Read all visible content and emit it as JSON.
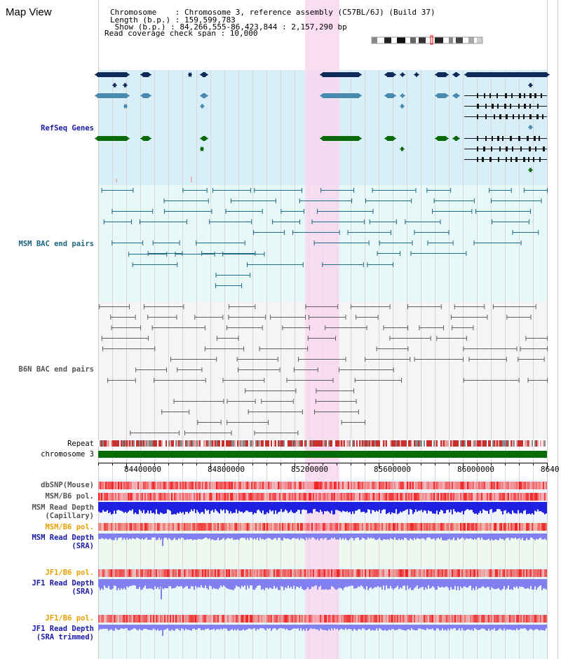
{
  "header": {
    "title": "Map View"
  },
  "info": {
    "chromosome": "Chromosome    : Chromosome 3, reference assembly (C57BL/6J) (Build 37)",
    "length": "Length (b.p.) : 159,599,783",
    "show": " Show (b.p.) : 84,266,555-86,423,844 : 2,157,290 bp",
    "coverage_span": "Read coverage check span : 10,000"
  },
  "tracks": {
    "refseq": "RefSeq Genes",
    "msm_bac": "MSM BAC end pairs",
    "b6n_bac": "B6N BAC end pairs",
    "repeat": "Repeat",
    "chromosome": "chromosome 3",
    "dbsnp": "dbSNP(Mouse)",
    "msm_b6_pol": "MSM/B6 pol.",
    "msm_depth_cap_1": "MSM Read Depth",
    "msm_depth_cap_2": "(Capillary)",
    "msm_b6_pol_2": "MSM/B6 pol.",
    "msm_depth_sra_1": "MSM Read Depth",
    "msm_depth_sra_2": "(SRA)",
    "jf1_b6_pol_1": "JF1/B6 pol.",
    "jf1_depth_sra_1": "JF1 Read Depth",
    "jf1_depth_sra_2": "(SRA)",
    "jf1_b6_pol_2": "JF1/B6 pol.",
    "jf1_depth_trim_1": "JF1 Read Depth",
    "jf1_depth_trim_2": "(SRA trimmed)"
  },
  "axis": {
    "ticks": [
      "84400000",
      "84800000",
      "85200000",
      "85600000",
      "86000000",
      "8640"
    ]
  },
  "colors": {
    "refseq_bg": "#d8eef8",
    "msm_bg": "#e6f8f8",
    "b6n_bg": "#f5f5f8",
    "highlight": "#f8d8f0",
    "refseq_dark": "#0e2a5a",
    "refseq_mid": "#4a8ab0",
    "refseq_green": "#0a6a0a",
    "msm_line": "#1e6a88",
    "b6n_line": "#606060",
    "chromosome_bar": "#0a6a0a",
    "depth_blue": "#2020e0",
    "depth_light": "#8080f0",
    "pol_red": "#f06060"
  }
}
